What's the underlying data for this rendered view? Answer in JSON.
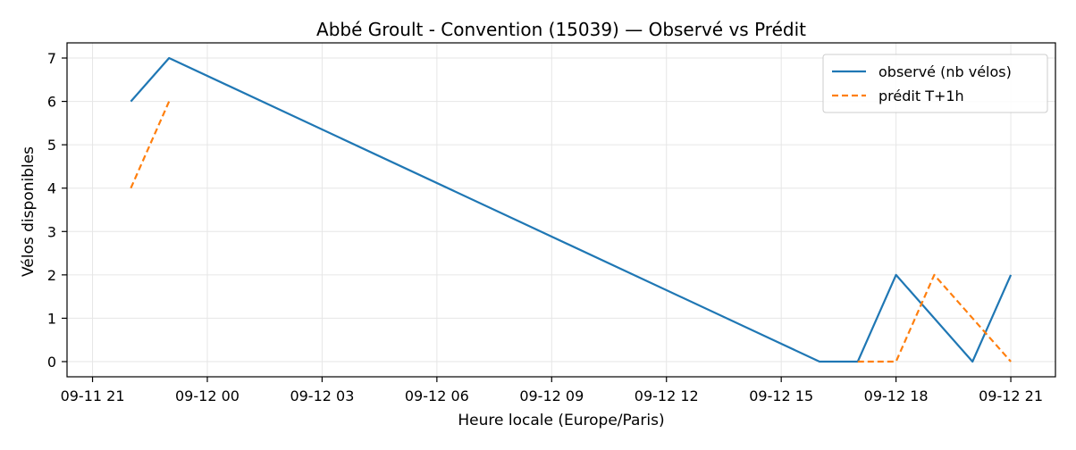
{
  "chart_data": {
    "type": "line",
    "title": "Abbé Groult - Convention (15039) — Observé vs Prédit",
    "xlabel": "Heure locale (Europe/Paris)",
    "ylabel": "Vélos disponibles",
    "xlim": [
      "2024-09-11T20:20",
      "2024-09-12T22:10"
    ],
    "ylim": [
      -0.35,
      7.35
    ],
    "x_ticks": [
      {
        "t": "2024-09-11T21:00",
        "label": "09-11 21"
      },
      {
        "t": "2024-09-12T00:00",
        "label": "09-12 00"
      },
      {
        "t": "2024-09-12T03:00",
        "label": "09-12 03"
      },
      {
        "t": "2024-09-12T06:00",
        "label": "09-12 06"
      },
      {
        "t": "2024-09-12T09:00",
        "label": "09-12 09"
      },
      {
        "t": "2024-09-12T12:00",
        "label": "09-12 12"
      },
      {
        "t": "2024-09-12T15:00",
        "label": "09-12 15"
      },
      {
        "t": "2024-09-12T18:00",
        "label": "09-12 18"
      },
      {
        "t": "2024-09-12T21:00",
        "label": "09-12 21"
      }
    ],
    "y_ticks": [
      0,
      1,
      2,
      3,
      4,
      5,
      6,
      7
    ],
    "grid": true,
    "legend_position": "top-right",
    "series": [
      {
        "name": "observé (nb vélos)",
        "color": "#1f77b4",
        "style": "solid",
        "points": [
          {
            "x": "2024-09-11T22:00",
            "y": 6
          },
          {
            "x": "2024-09-11T23:00",
            "y": 7
          },
          {
            "x": "2024-09-12T16:00",
            "y": 0
          },
          {
            "x": "2024-09-12T17:00",
            "y": 0
          },
          {
            "x": "2024-09-12T18:00",
            "y": 2
          },
          {
            "x": "2024-09-12T20:00",
            "y": 0
          },
          {
            "x": "2024-09-12T21:00",
            "y": 2
          }
        ]
      },
      {
        "name": "prédit T+1h",
        "color": "#ff7f0e",
        "style": "dashed",
        "segments": [
          [
            {
              "x": "2024-09-11T22:00",
              "y": 4
            },
            {
              "x": "2024-09-11T23:00",
              "y": 6
            }
          ],
          [
            {
              "x": "2024-09-12T17:00",
              "y": 0
            },
            {
              "x": "2024-09-12T18:00",
              "y": 0
            },
            {
              "x": "2024-09-12T19:00",
              "y": 2
            },
            {
              "x": "2024-09-12T21:00",
              "y": 0
            }
          ]
        ]
      }
    ]
  }
}
